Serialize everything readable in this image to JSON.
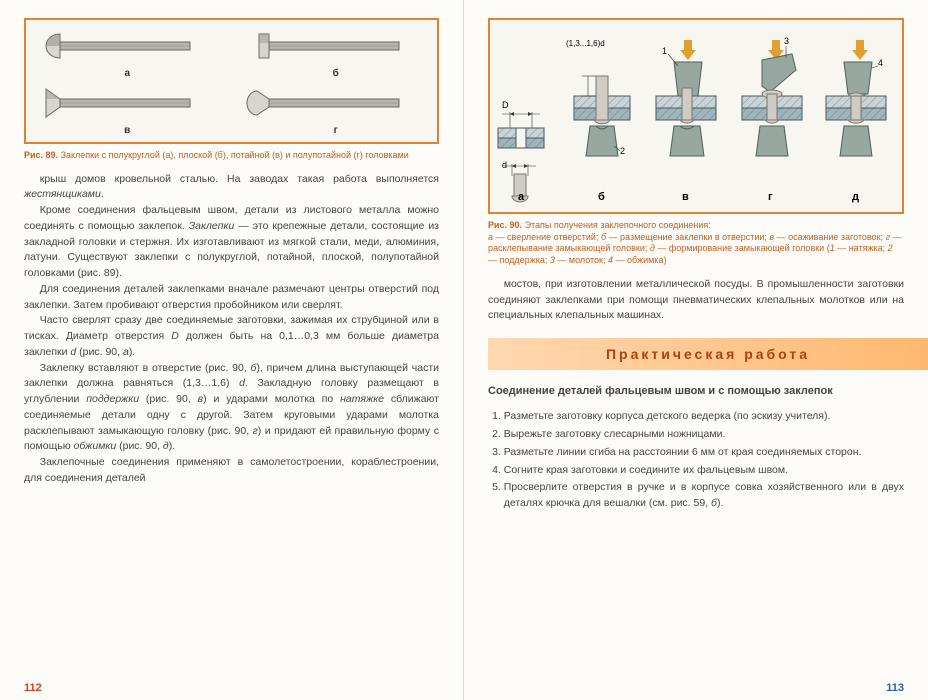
{
  "leftPage": {
    "pageNumber": "112",
    "fig89": {
      "caption_bold": "Рис. 89.",
      "caption_rest": " Заклепки с полукруглой (а), плоской (б), потайной (в) и полупотайной (г) головками",
      "labels": {
        "a": "а",
        "b": "б",
        "v": "в",
        "g": "г"
      },
      "svg": {
        "shaft_fill": "#b8b4ae",
        "shaft_stroke": "#6a6864",
        "head_fill_light": "#d8d5ce",
        "head_fill_dark": "#8c8984"
      }
    },
    "paragraphs": [
      "крыш домов кровельной сталью. На заводах такая работа выполняется <em>жестянщиками</em>.",
      "Кроме соединения фальцевым швом, детали из листового металла можно соединять с помощью заклепок. <em>Заклепки</em> — это крепежные детали, состоящие из закладной головки и стержня. Их изготавливают из мягкой стали, меди, алюминия, латуни. Существуют заклепки с полукруглой, потайной, плоской, полупотайной головками (рис. 89).",
      "Для соединения деталей заклепками вначале размечают центры отверстий под заклепки. Затем пробивают отверстия пробойником или сверлят.",
      "Часто сверлят сразу две соединяемые заготовки, зажимая их струбциной или в тисках. Диаметр отверстия <em>D</em> должен быть на 0,1…0,3 мм больше диаметра заклепки <em>d</em> (рис. 90, <em>а</em>).",
      "Заклепку вставляют в отверстие (рис. 90, <em>б</em>), причем длина выступающей части заклепки должна равняться (1,3…1,6) <em>d</em>. Закладную головку размещают в углублении <em>поддержки</em> (рис. 90, <em>в</em>) и ударами молотка по <em>натяжке</em> сближают соединяемые детали одну с другой. Затем круговыми ударами молотка расклепывают замыкающую головку (рис. 90, <em>г</em>) и придают ей правильную форму с помощью <em>обжимки</em> (рис. 90, <em>д</em>).",
      "Заклепочные соединения применяют в самолетостроении, кораблестроении, для соединения деталей"
    ]
  },
  "rightPage": {
    "pageNumber": "113",
    "fig90": {
      "caption_bold": "Рис. 90.",
      "caption_rest": " Этапы получения заклепочного соединения:<br><em>а</em> — сверление отверстий; <em>б</em> — размещение заклепки в отверстии; <em>в</em> — осаживание заготовок; <em>г</em> — расклепывание замыкающей головки; <em>д</em> — формирование замыкающей головки (<em>1</em> — натяжка; <em>2</em> — поддержка; <em>3</em> — молоток; <em>4</em> — обжимка)",
      "stage_labels": {
        "a": "а",
        "b": "б",
        "v": "в",
        "g": "г",
        "d": "д"
      },
      "dim_labels": {
        "D": "D",
        "d": "d",
        "len": "(1,3...1,6)d"
      },
      "callouts": {
        "c1": "1",
        "c2": "2",
        "c3": "3",
        "c4": "4"
      },
      "svg": {
        "plate_top_fill": "#c8d4d8",
        "plate_bot_fill": "#a0b4bc",
        "plate_stroke": "#4a5860",
        "hatch": "#3a4850",
        "tool_fill": "#98a8a0",
        "tool_stroke": "#506058",
        "rivet_fill": "#d0ccc4",
        "rivet_stroke": "#787570",
        "arrow": "#e0a030"
      }
    },
    "cont_paragraph": "мостов, при изготовлении металлической посуды. В промышленности заготовки соединяют заклепками при помощи пневматических клепальных молотков или на специальных клепальных машинах.",
    "practiceTitle": "Практическая работа",
    "subheading": "Соединение деталей фальцевым швом и с помощью заклепок",
    "steps": [
      "Разметьте заготовку корпуса детского ведерка (по эскизу учителя).",
      "Вырежьте заготовку слесарными ножницами.",
      "Разметьте линии сгиба на расстоянии 6 мм от края соединяемых сторон.",
      "Согните края заготовки и соедините их фальцевым швом.",
      "Просверлите отверстия в ручке и в корпусе совка хозяйственного или в двух деталях крючка для вешалки (см. рис. 59, <em>б</em>)."
    ]
  }
}
